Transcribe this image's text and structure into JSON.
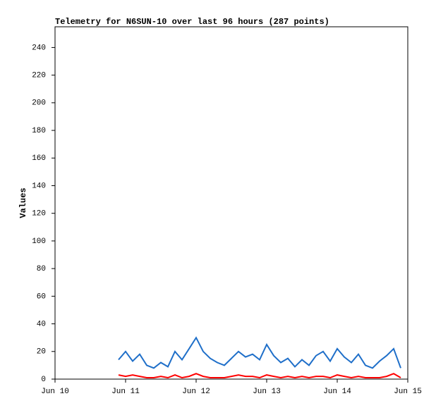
{
  "chart_data": {
    "type": "line",
    "title": "Telemetry for N6SUN-10 over last 96 hours (287 points)",
    "y_label": "Values",
    "x": [
      10.9,
      11.0,
      11.1,
      11.2,
      11.3,
      11.4,
      11.5,
      11.6,
      11.7,
      11.8,
      11.9,
      12.0,
      12.1,
      12.2,
      12.3,
      12.4,
      12.5,
      12.6,
      12.7,
      12.8,
      12.9,
      13.0,
      13.1,
      13.2,
      13.3,
      13.4,
      13.5,
      13.6,
      13.7,
      13.8,
      13.9,
      14.0,
      14.1,
      14.2,
      14.3,
      14.4,
      14.5,
      14.6,
      14.7,
      14.8,
      14.9
    ],
    "series": [
      {
        "color": "#1f6fc9",
        "values": [
          14,
          20,
          13,
          18,
          10,
          8,
          12,
          9,
          20,
          14,
          22,
          30,
          20,
          15,
          12,
          10,
          15,
          20,
          16,
          18,
          14,
          25,
          17,
          12,
          15,
          9,
          14,
          10,
          17,
          20,
          13,
          22,
          16,
          12,
          18,
          10,
          8,
          13,
          17,
          22,
          8
        ]
      },
      {
        "color": "#ff0000",
        "values": [
          3,
          2,
          3,
          2,
          1,
          1,
          2,
          1,
          3,
          1,
          2,
          4,
          2,
          1,
          1,
          1,
          2,
          3,
          2,
          2,
          1,
          3,
          2,
          1,
          2,
          1,
          2,
          1,
          2,
          2,
          1,
          3,
          2,
          1,
          2,
          1,
          1,
          1,
          2,
          4,
          1
        ]
      }
    ],
    "xlim": [
      10,
      15
    ],
    "xticks": [
      {
        "value": 10,
        "label": "Jun 10"
      },
      {
        "value": 11,
        "label": "Jun 11"
      },
      {
        "value": 12,
        "label": "Jun 12"
      },
      {
        "value": 13,
        "label": "Jun 13"
      },
      {
        "value": 14,
        "label": "Jun 14"
      },
      {
        "value": 15,
        "label": "Jun 15"
      }
    ],
    "ylim": [
      0,
      255
    ],
    "yticks": [
      0,
      20,
      40,
      60,
      80,
      100,
      120,
      140,
      160,
      180,
      200,
      220,
      240
    ],
    "grid": false
  }
}
